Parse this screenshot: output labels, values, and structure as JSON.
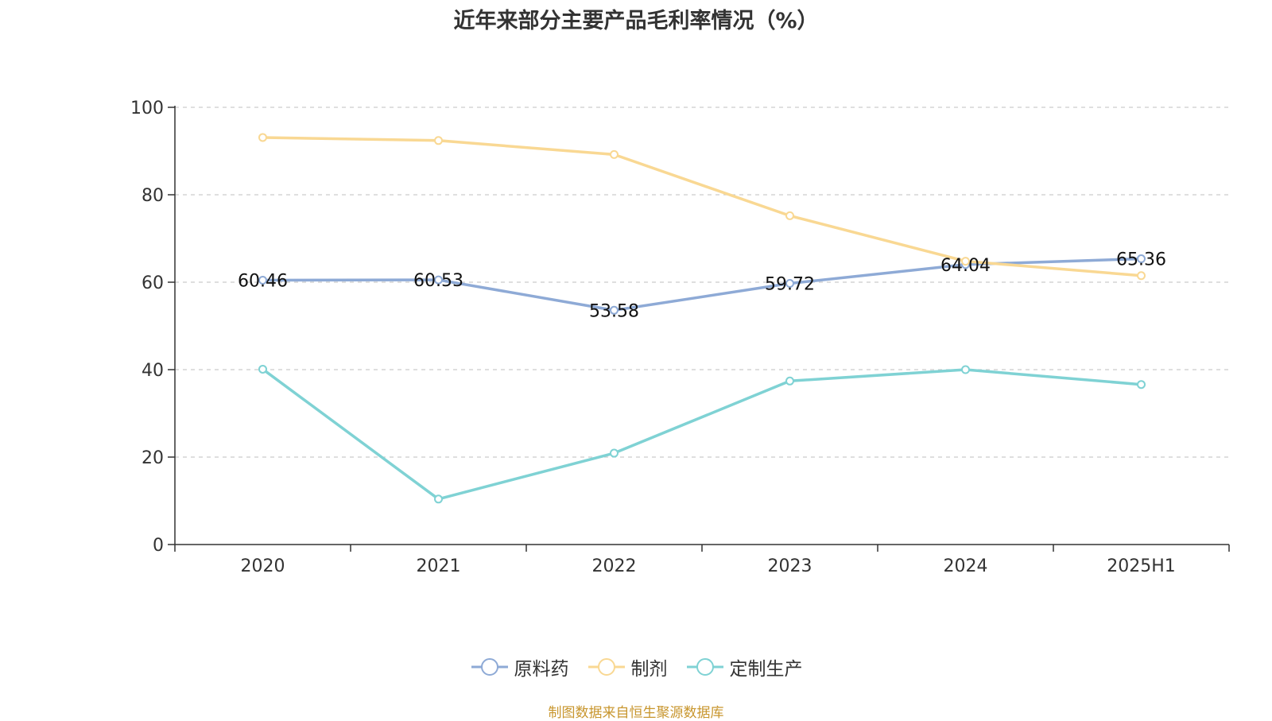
{
  "chart_data": {
    "type": "line",
    "title": "近年来部分主要产品毛利率情况（%）",
    "categories": [
      "2020",
      "2021",
      "2022",
      "2023",
      "2024",
      "2025H1"
    ],
    "ylim": [
      0,
      100
    ],
    "yticks": [
      0,
      20,
      40,
      60,
      80,
      100
    ],
    "grid": true,
    "legend_position": "bottom",
    "series": [
      {
        "name": "原料药",
        "color": "#8eaad6",
        "values": [
          60.46,
          60.53,
          53.58,
          59.72,
          64.04,
          65.36
        ],
        "show_labels": true
      },
      {
        "name": "制剂",
        "color": "#f9d893",
        "values": [
          93.1,
          92.4,
          89.2,
          75.2,
          64.8,
          61.5
        ],
        "show_labels": false
      },
      {
        "name": "定制生产",
        "color": "#7fd2d4",
        "values": [
          40.1,
          10.4,
          20.9,
          37.4,
          40.0,
          36.6
        ],
        "show_labels": false
      }
    ]
  },
  "source_note": "制图数据来自恒生聚源数据库"
}
